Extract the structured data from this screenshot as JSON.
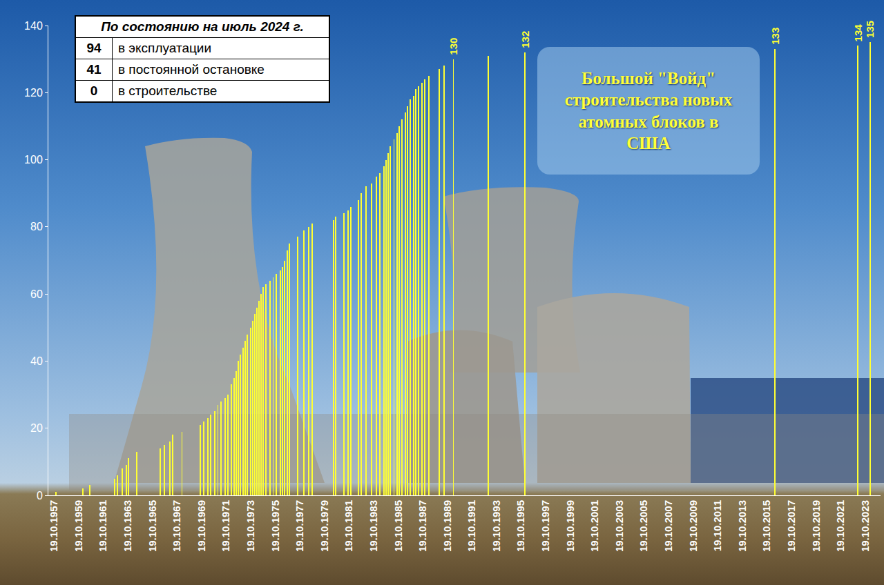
{
  "chart_data": {
    "type": "bar",
    "title": "Большой \"Войд\" строительства новых атомных блоков в США",
    "color": "#ffff33",
    "grid": false,
    "x": [
      "1957-12-15",
      "1960-02-15",
      "1960-09-15",
      "1962-09-15",
      "1962-12-15",
      "1963-05-15",
      "1963-09-15",
      "1963-11-15",
      "1964-07-15",
      "1966-06-15",
      "1966-10-15",
      "1967-03-15",
      "1967-06-15",
      "1968-03-15",
      "1969-09-15",
      "1969-12-15",
      "1970-04-15",
      "1970-07-15",
      "1970-11-15",
      "1971-02-15",
      "1971-05-15",
      "1971-09-15",
      "1971-12-15",
      "1972-03-15",
      "1972-06-15",
      "1972-08-15",
      "1972-10-15",
      "1972-12-15",
      "1973-03-15",
      "1973-05-15",
      "1973-07-15",
      "1973-10-15",
      "1973-12-15",
      "1974-02-15",
      "1974-04-15",
      "1974-06-15",
      "1974-08-15",
      "1974-10-15",
      "1975-01-15",
      "1975-05-15",
      "1975-08-15",
      "1975-11-15",
      "1976-03-15",
      "1976-05-15",
      "1976-07-15",
      "1976-10-15",
      "1976-12-15",
      "1977-08-15",
      "1978-02-15",
      "1978-07-15",
      "1978-10-15",
      "1980-07-15",
      "1980-09-15",
      "1981-05-15",
      "1981-09-15",
      "1981-12-15",
      "1982-07-15",
      "1982-10-15",
      "1983-03-15",
      "1983-08-15",
      "1984-01-15",
      "1984-04-15",
      "1984-08-15",
      "1984-10-15",
      "1984-12-15",
      "1985-02-15",
      "1985-06-15",
      "1985-09-15",
      "1985-11-15",
      "1986-02-15",
      "1986-05-15",
      "1986-07-15",
      "1986-10-15",
      "1987-01-15",
      "1987-03-15",
      "1987-06-15",
      "1987-09-15",
      "1987-12-15",
      "1988-04-15",
      "1989-02-15",
      "1989-07-15",
      "1990-04-15",
      "1993-02-15",
      "1996-02-15",
      "2016-06-15",
      "2023-03-15",
      "2024-03-15"
    ],
    "values": [
      1,
      2,
      3,
      5,
      6,
      8,
      9,
      11,
      13,
      14,
      15,
      16,
      18,
      19,
      21,
      22,
      23,
      24,
      25,
      27,
      28,
      29,
      30,
      33,
      35,
      37,
      40,
      42,
      44,
      46,
      48,
      50,
      52,
      54,
      56,
      58,
      60,
      62,
      63,
      64,
      65,
      66,
      67,
      68,
      70,
      73,
      75,
      77,
      79,
      80,
      81,
      82,
      83,
      84,
      85,
      86,
      88,
      90,
      92,
      93,
      95,
      96,
      98,
      100,
      102,
      104,
      106,
      108,
      110,
      112,
      114,
      116,
      118,
      119,
      121,
      122,
      123,
      124,
      125,
      127,
      128,
      130,
      131,
      132,
      133,
      134,
      135
    ],
    "value_labels": [
      null,
      null,
      null,
      null,
      null,
      null,
      null,
      null,
      null,
      null,
      null,
      null,
      null,
      null,
      null,
      null,
      null,
      null,
      null,
      null,
      null,
      null,
      null,
      null,
      null,
      null,
      null,
      null,
      null,
      null,
      null,
      null,
      null,
      null,
      null,
      null,
      null,
      null,
      null,
      null,
      null,
      null,
      null,
      null,
      null,
      null,
      null,
      null,
      null,
      null,
      null,
      null,
      null,
      null,
      null,
      null,
      null,
      null,
      null,
      null,
      null,
      null,
      null,
      null,
      null,
      null,
      null,
      null,
      null,
      null,
      null,
      null,
      null,
      null,
      null,
      null,
      null,
      null,
      null,
      null,
      null,
      "130",
      null,
      "132",
      "133",
      "134",
      "135"
    ],
    "xlim": [
      "1957-05-01",
      "2025-01-15"
    ],
    "xticks": [
      {
        "value": "1957-10-19",
        "label": "19.10.1957"
      },
      {
        "value": "1959-10-19",
        "label": "19.10.1959"
      },
      {
        "value": "1961-10-19",
        "label": "19.10.1961"
      },
      {
        "value": "1963-10-19",
        "label": "19.10.1963"
      },
      {
        "value": "1965-10-19",
        "label": "19.10.1965"
      },
      {
        "value": "1967-10-19",
        "label": "19.10.1967"
      },
      {
        "value": "1969-10-19",
        "label": "19.10.1969"
      },
      {
        "value": "1971-10-19",
        "label": "19.10.1971"
      },
      {
        "value": "1973-10-19",
        "label": "19.10.1973"
      },
      {
        "value": "1975-10-19",
        "label": "19.10.1975"
      },
      {
        "value": "1977-10-19",
        "label": "19.10.1977"
      },
      {
        "value": "1979-10-19",
        "label": "19.10.1979"
      },
      {
        "value": "1981-10-19",
        "label": "19.10.1981"
      },
      {
        "value": "1983-10-19",
        "label": "19.10.1983"
      },
      {
        "value": "1985-10-19",
        "label": "19.10.1985"
      },
      {
        "value": "1987-10-19",
        "label": "19.10.1987"
      },
      {
        "value": "1989-10-19",
        "label": "19.10.1989"
      },
      {
        "value": "1991-10-19",
        "label": "19.10.1991"
      },
      {
        "value": "1993-10-19",
        "label": "19.10.1993"
      },
      {
        "value": "1995-10-19",
        "label": "19.10.1995"
      },
      {
        "value": "1997-10-19",
        "label": "19.10.1997"
      },
      {
        "value": "1999-10-19",
        "label": "19.10.1999"
      },
      {
        "value": "2001-10-19",
        "label": "19.10.2001"
      },
      {
        "value": "2003-10-19",
        "label": "19.10.2003"
      },
      {
        "value": "2005-10-19",
        "label": "19.10.2005"
      },
      {
        "value": "2007-10-19",
        "label": "19.10.2007"
      },
      {
        "value": "2009-10-19",
        "label": "19.10.2009"
      },
      {
        "value": "2011-10-19",
        "label": "19.10.2011"
      },
      {
        "value": "2013-10-19",
        "label": "19.10.2013"
      },
      {
        "value": "2015-10-19",
        "label": "19.10.2015"
      },
      {
        "value": "2017-10-19",
        "label": "19.10.2017"
      },
      {
        "value": "2019-10-19",
        "label": "19.10.2019"
      },
      {
        "value": "2021-10-19",
        "label": "19.10.2021"
      },
      {
        "value": "2023-10-19",
        "label": "19.10.2023"
      }
    ],
    "ylim": [
      0,
      140
    ],
    "yticks": [
      0,
      20,
      40,
      60,
      80,
      100,
      120,
      140
    ],
    "status_table": {
      "title": "По состоянию на июль 2024 г.",
      "rows": [
        [
          94,
          "в эксплуатации"
        ],
        [
          41,
          "в постоянной остановке"
        ],
        [
          0,
          "в строительстве"
        ]
      ]
    }
  }
}
